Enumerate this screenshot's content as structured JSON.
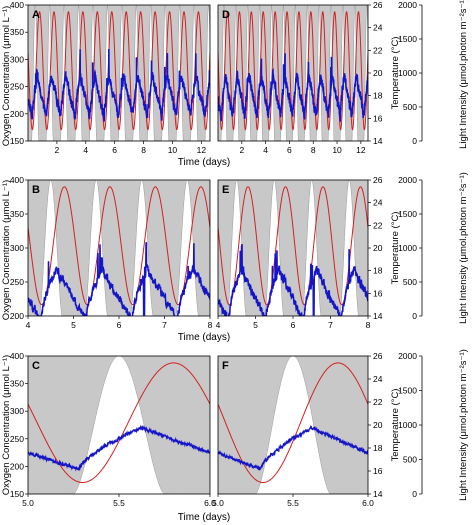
{
  "colors": {
    "background_panel": "#c8c8c8",
    "light_curve": "#ffffff",
    "oxygen": "#1515c8",
    "temperature": "#d42020"
  },
  "axis_labels": {
    "left": "Oxygen Concentration (μmol L⁻¹)",
    "right_temp": "Temperature (°C)",
    "right_light": "Light Intensity (μmol.photon m⁻²s⁻¹)",
    "x": "Time (days)"
  },
  "chart_data": [
    {
      "panel": "A",
      "type": "line",
      "xlim": [
        0,
        12.6
      ],
      "ylim": [
        150,
        400
      ],
      "temp_lim": [
        14,
        26
      ],
      "light_lim": [
        0,
        2000
      ],
      "x_ticks": [
        2,
        4,
        6,
        8,
        10,
        12
      ],
      "y_ticks": [
        150,
        200,
        250,
        300,
        350,
        400
      ],
      "temp_ticks": [
        14,
        16,
        18,
        20,
        22,
        24,
        26
      ],
      "light_ticks": [
        0,
        500,
        1000,
        1500,
        2000
      ],
      "series": [
        {
          "name": "Oxygen",
          "values_desc": "daily cycle, min ~195 around dawn, max ~260 afternoon with spikes up to ~310"
        },
        {
          "name": "Temperature",
          "range": [
            15,
            25.5
          ],
          "period_days": 1
        },
        {
          "name": "Light",
          "peak": 2000,
          "period_days": 1
        }
      ]
    },
    {
      "panel": "D",
      "type": "line",
      "xlim": [
        0,
        12.6
      ],
      "ylim": [
        150,
        400
      ],
      "temp_lim": [
        14,
        26
      ],
      "light_lim": [
        0,
        2000
      ],
      "x_ticks": [
        2,
        4,
        6,
        8,
        10,
        12
      ],
      "temp_ticks": [
        14,
        16,
        18,
        20,
        22,
        24,
        26
      ],
      "light_ticks": [
        0,
        500,
        1000,
        1500,
        2000
      ]
    },
    {
      "panel": "B",
      "type": "line",
      "xlim": [
        4,
        8
      ],
      "ylim": [
        200,
        400
      ],
      "temp_lim": [
        14,
        26
      ],
      "light_lim": [
        0,
        2000
      ],
      "x_ticks": [
        4,
        5,
        6,
        7,
        8
      ],
      "y_ticks": [
        200,
        250,
        300,
        350,
        400
      ],
      "temp_ticks": [
        14,
        16,
        18,
        20,
        22,
        24,
        26
      ],
      "light_ticks": [
        0,
        500,
        1000,
        1500,
        2000
      ]
    },
    {
      "panel": "E",
      "type": "line",
      "xlim": [
        4,
        8
      ],
      "ylim": [
        200,
        400
      ],
      "temp_lim": [
        14,
        26
      ],
      "light_lim": [
        0,
        2000
      ],
      "x_ticks": [
        4,
        5,
        6,
        7,
        8
      ],
      "temp_ticks": [
        14,
        16,
        18,
        20,
        22,
        24,
        26
      ],
      "light_ticks": [
        0,
        500,
        1000,
        1500,
        2000
      ]
    },
    {
      "panel": "C",
      "type": "line",
      "xlim": [
        5.0,
        6.0
      ],
      "ylim": [
        150,
        400
      ],
      "temp_lim": [
        14,
        26
      ],
      "light_lim": [
        0,
        2000
      ],
      "x_ticks": [
        "5.0",
        "5.5",
        "6.0"
      ],
      "y_ticks": [
        150,
        200,
        250,
        300,
        350,
        400
      ],
      "temp_ticks": [
        14,
        16,
        18,
        20,
        22,
        24,
        26
      ],
      "light_ticks": [
        0,
        500,
        1000,
        1500,
        2000
      ]
    },
    {
      "panel": "F",
      "type": "line",
      "xlim": [
        5.0,
        6.0
      ],
      "ylim": [
        150,
        400
      ],
      "temp_lim": [
        14,
        26
      ],
      "light_lim": [
        0,
        2000
      ],
      "x_ticks": [
        "5.0",
        "5.5",
        "6.0"
      ],
      "temp_ticks": [
        14,
        16,
        18,
        20,
        22,
        24,
        26
      ],
      "light_ticks": [
        0,
        500,
        1000,
        1500,
        2000
      ]
    }
  ]
}
